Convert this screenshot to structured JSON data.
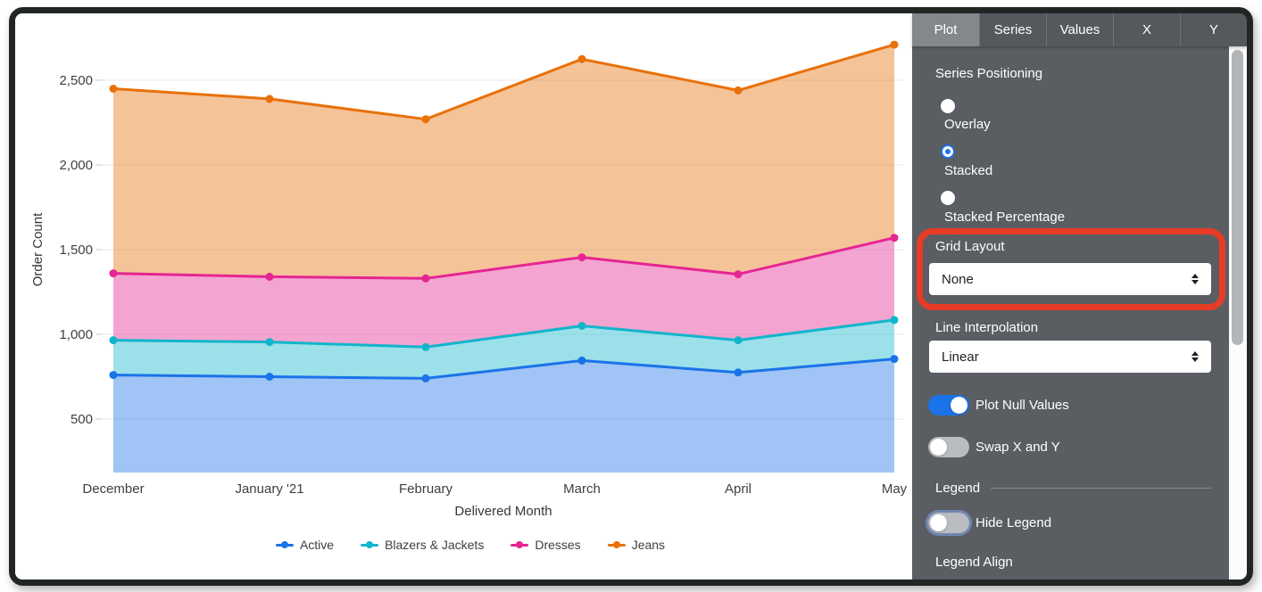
{
  "panel": {
    "tabs": [
      {
        "label": "Plot",
        "selected": true
      },
      {
        "label": "Series",
        "selected": false
      },
      {
        "label": "Values",
        "selected": false
      },
      {
        "label": "X",
        "selected": false
      },
      {
        "label": "Y",
        "selected": false
      }
    ],
    "series_positioning": {
      "label": "Series Positioning",
      "options": [
        {
          "label": "Overlay",
          "selected": false
        },
        {
          "label": "Stacked",
          "selected": true
        },
        {
          "label": "Stacked Percentage",
          "selected": false
        }
      ]
    },
    "grid_layout": {
      "label": "Grid Layout",
      "value": "None"
    },
    "line_interpolation": {
      "label": "Line Interpolation",
      "value": "Linear"
    },
    "plot_null_values": {
      "label": "Plot Null Values",
      "on": true
    },
    "swap_x_y": {
      "label": "Swap X and Y",
      "on": false
    },
    "legend_section": {
      "header": "Legend",
      "hide_legend": {
        "label": "Hide Legend",
        "on": false
      },
      "legend_align_label": "Legend Align"
    },
    "annotation_color": "#e83b26",
    "accent_color": "#1a73e8"
  },
  "chart_data": {
    "type": "area",
    "stacked": true,
    "categories": [
      "December",
      "January '21",
      "February",
      "March",
      "April",
      "May"
    ],
    "series": [
      {
        "name": "Active",
        "color": "#1a73e8",
        "values": [
          760,
          750,
          740,
          845,
          775,
          855
        ]
      },
      {
        "name": "Blazers & Jackets",
        "color": "#12b5cb",
        "values": [
          205,
          205,
          185,
          205,
          190,
          230
        ]
      },
      {
        "name": "Dresses",
        "color": "#e52592",
        "values": [
          395,
          385,
          405,
          405,
          390,
          485
        ]
      },
      {
        "name": "Jeans",
        "color": "#e8710a",
        "values": [
          1090,
          1050,
          940,
          1170,
          1085,
          1140
        ]
      }
    ],
    "stacked_totals": [
      2450,
      2390,
      2270,
      2625,
      2440,
      2710
    ],
    "xlabel": "Delivered Month",
    "ylabel": "Order Count",
    "y_ticks": [
      500,
      1000,
      1500,
      2000,
      2500
    ],
    "y_tick_labels": [
      "500",
      "1,000",
      "1,500",
      "2,000",
      "2,500"
    ],
    "grid": true,
    "legend_position": "bottom"
  }
}
